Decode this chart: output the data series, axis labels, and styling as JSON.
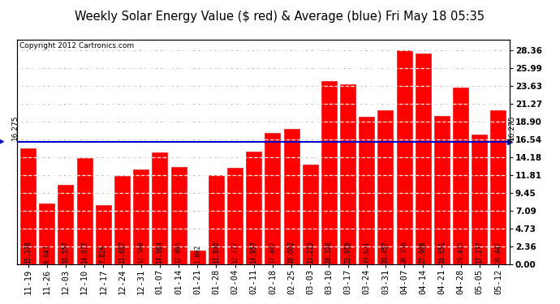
{
  "title": "Weekly Solar Energy Value ($ red) & Average (blue) Fri May 18 05:35",
  "copyright": "Copyright 2012 Cartronics.com",
  "average_value": 16.275,
  "average_label": "16.275",
  "categories": [
    "11-19",
    "11-26",
    "12-03",
    "12-10",
    "12-17",
    "12-24",
    "12-31",
    "01-07",
    "01-14",
    "01-21",
    "01-28",
    "02-04",
    "02-11",
    "02-18",
    "02-25",
    "03-03",
    "03-10",
    "03-17",
    "03-24",
    "03-31",
    "04-07",
    "04-14",
    "04-21",
    "04-28",
    "05-05",
    "05-12"
  ],
  "values": [
    15.378,
    8.043,
    10.557,
    14.077,
    7.826,
    11.687,
    12.56,
    14.864,
    12.885,
    1.802,
    11.84,
    12.777,
    14.957,
    17.402,
    18.002,
    13.223,
    24.32,
    23.91,
    19.621,
    20.457,
    28.356,
    27.906,
    19.651,
    23.435,
    17.177,
    20.447
  ],
  "bar_color": "#ff0000",
  "bar_edge_color": "#dd0000",
  "avg_line_color": "#0000cc",
  "avg_label_color": "#000000",
  "title_fontsize": 10.5,
  "copyright_fontsize": 6.5,
  "tick_fontsize": 7.5,
  "value_fontsize": 5.5,
  "ytick_labels_right": [
    "0.00",
    "2.36",
    "4.73",
    "7.09",
    "9.45",
    "11.81",
    "14.18",
    "16.54",
    "18.90",
    "21.27",
    "23.63",
    "25.99",
    "28.36"
  ],
  "ytick_values_right": [
    0.0,
    2.36,
    4.73,
    7.09,
    9.45,
    11.81,
    14.18,
    16.54,
    18.9,
    21.27,
    23.63,
    25.99,
    28.36
  ],
  "ymax": 29.8,
  "ymin": 0.0,
  "bg_color": "#ffffff",
  "plot_bg_color": "#ffffff",
  "grid_color": "#aaaaaa",
  "grid_style": "--"
}
